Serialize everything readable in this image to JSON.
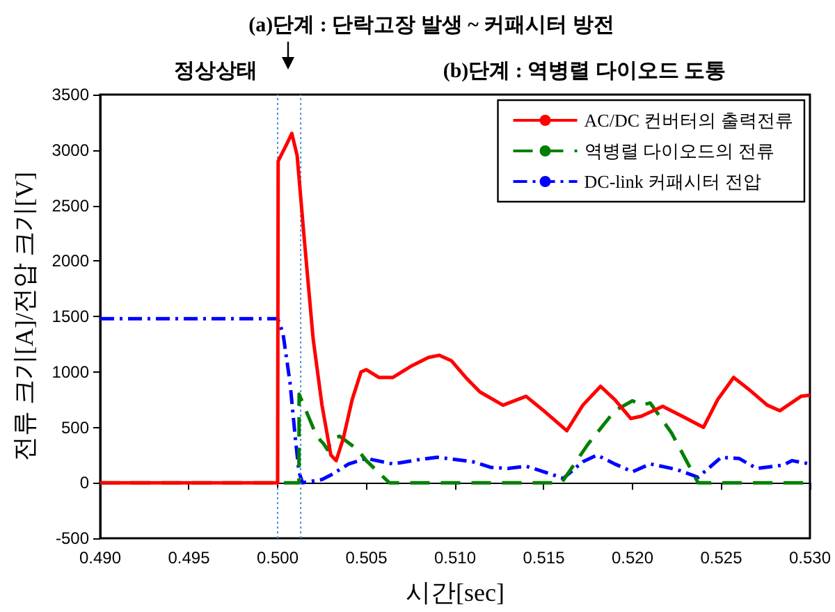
{
  "chart_data": {
    "type": "line",
    "title": "(a)단계 : 단락고장 발생 ~ 커패시터 방전",
    "xlabel": "시간[sec]",
    "ylabel": "전류 크기[A]/전압 크기[V]",
    "annotations": [
      "정상상태",
      "(b)단계 : 역병렬 다이오드 도통"
    ],
    "xlim": [
      0.49,
      0.53
    ],
    "xticks": [
      {
        "value": 0.49,
        "label": "0.490"
      },
      {
        "value": 0.495,
        "label": "0.495"
      },
      {
        "value": 0.5,
        "label": "0.500"
      },
      {
        "value": 0.505,
        "label": "0.505"
      },
      {
        "value": 0.51,
        "label": "0.510"
      },
      {
        "value": 0.515,
        "label": "0.515"
      },
      {
        "value": 0.52,
        "label": "0.520"
      },
      {
        "value": 0.525,
        "label": "0.525"
      },
      {
        "value": 0.53,
        "label": "0.530"
      }
    ],
    "ylim": [
      -500,
      3500
    ],
    "yticks": [
      -500,
      0,
      500,
      1000,
      1500,
      2000,
      2500,
      3000,
      3500
    ],
    "grid": false,
    "legend": "top right",
    "marker": "none",
    "ref_lines": [
      {
        "axis": "x",
        "value": 0.5,
        "color": "#4a90d9",
        "line_style": "dotted"
      },
      {
        "axis": "x",
        "value": 0.5013,
        "color": "#4a90d9",
        "line_style": "dotted"
      }
    ],
    "series": [
      {
        "name": "AC/DC 컨버터의 출력전류",
        "color": "#ff0000",
        "line_style": "solid",
        "x": [
          0.49,
          0.5,
          0.50003,
          0.5005,
          0.5008,
          0.5011,
          0.5015,
          0.502,
          0.5025,
          0.503,
          0.5033,
          0.5037,
          0.5042,
          0.5047,
          0.505,
          0.5057,
          0.5065,
          0.5075,
          0.5085,
          0.5091,
          0.5098,
          0.5106,
          0.5114,
          0.5127,
          0.514,
          0.515,
          0.5163,
          0.5172,
          0.5182,
          0.519,
          0.5199,
          0.5205,
          0.5217,
          0.5228,
          0.524,
          0.5248,
          0.5257,
          0.5265,
          0.5276,
          0.5283,
          0.5295,
          0.53
        ],
        "values": [
          0,
          0,
          2900,
          3050,
          3150,
          2950,
          2200,
          1300,
          700,
          250,
          200,
          400,
          750,
          1000,
          1020,
          950,
          950,
          1050,
          1130,
          1150,
          1100,
          950,
          820,
          700,
          780,
          650,
          470,
          700,
          870,
          750,
          580,
          600,
          690,
          600,
          500,
          750,
          950,
          850,
          700,
          650,
          780,
          790
        ]
      },
      {
        "name": "역병렬 다이오드의 전류",
        "color": "#008000",
        "line_style": "dashed",
        "x": [
          0.49,
          0.5012,
          0.50121,
          0.5022,
          0.5026,
          0.5028,
          0.5031,
          0.5035,
          0.5045,
          0.505,
          0.5063,
          0.516,
          0.5175,
          0.519,
          0.52,
          0.5205,
          0.521,
          0.5222,
          0.5237,
          0.53
        ],
        "values": [
          0,
          0,
          800,
          420,
          350,
          300,
          400,
          420,
          300,
          200,
          0,
          0,
          350,
          650,
          740,
          700,
          720,
          450,
          0,
          0
        ]
      },
      {
        "name": "DC-link 커패시터 전압",
        "color": "#0000ff",
        "line_style": "dashdot",
        "x": [
          0.49,
          0.5,
          0.5003,
          0.5007,
          0.501,
          0.5012,
          0.5014,
          0.5025,
          0.503,
          0.504,
          0.505,
          0.5065,
          0.508,
          0.509,
          0.511,
          0.512,
          0.513,
          0.514,
          0.515,
          0.5161,
          0.5172,
          0.518,
          0.519,
          0.52,
          0.521,
          0.5225,
          0.5237,
          0.525,
          0.526,
          0.527,
          0.5285,
          0.529,
          0.53
        ],
        "values": [
          1480,
          1480,
          1350,
          900,
          400,
          100,
          0,
          30,
          70,
          170,
          220,
          170,
          210,
          230,
          190,
          140,
          130,
          150,
          100,
          40,
          190,
          250,
          170,
          100,
          170,
          120,
          50,
          230,
          220,
          130,
          160,
          200,
          170
        ]
      }
    ]
  }
}
